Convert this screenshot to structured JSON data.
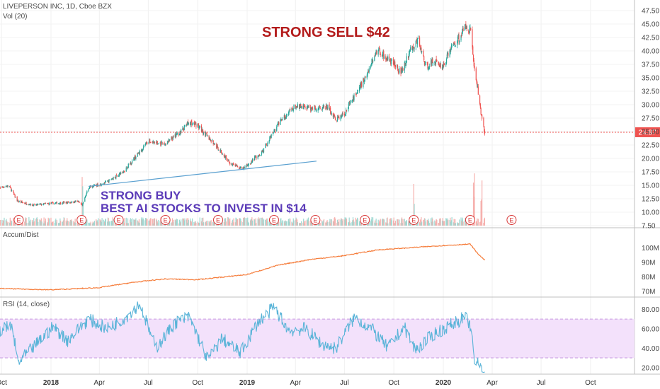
{
  "header": {
    "main_title": "LIVEPERSON INC, 1D, Cboe BZX",
    "volume_label": "Vol (20)",
    "accum_label": "Accum/Dist",
    "rsi_label": "RSI (14, close)"
  },
  "annotations": {
    "sell_text": "STRONG SELL $42",
    "buy_line1": "STRONG BUY",
    "buy_line2": "BEST AI STOCKS TO INVEST IN $14"
  },
  "colors": {
    "up": "#26a69a",
    "down": "#ef5350",
    "accum": "#f57c3a",
    "rsi": "#5ab4d8",
    "rsi_band": "#f3e1fb",
    "trendline": "#5aa0d0",
    "price_line": "#ef5350",
    "earnings": "#d93a3a"
  },
  "chart_data": [
    {
      "type": "candlestick",
      "symbol": "LIVEPERSON INC",
      "interval": "1D",
      "y_ticks": [
        "47.50",
        "45.00",
        "42.50",
        "40.00",
        "37.50",
        "35.00",
        "32.50",
        "30.00",
        "27.50",
        "25.00",
        "22.50",
        "20.00",
        "17.50",
        "15.00",
        "12.50",
        "10.00",
        "7.50"
      ],
      "ylim": [
        7.5,
        47.5
      ],
      "last_price": 24.87,
      "last_price_label": "24.87",
      "x_ticks": [
        {
          "label": "Oct",
          "date": "2017-10-01",
          "year": false
        },
        {
          "label": "2018",
          "date": "2018-01-01",
          "year": true
        },
        {
          "label": "Apr",
          "date": "2018-04-01",
          "year": false
        },
        {
          "label": "Jul",
          "date": "2018-07-01",
          "year": false
        },
        {
          "label": "Oct",
          "date": "2018-10-01",
          "year": false
        },
        {
          "label": "2019",
          "date": "2019-01-01",
          "year": true
        },
        {
          "label": "Apr",
          "date": "2019-04-01",
          "year": false
        },
        {
          "label": "Jul",
          "date": "2019-07-01",
          "year": false
        },
        {
          "label": "Oct",
          "date": "2019-10-01",
          "year": false
        },
        {
          "label": "2020",
          "date": "2020-01-01",
          "year": true
        },
        {
          "label": "Apr",
          "date": "2020-04-01",
          "year": false
        },
        {
          "label": "Jul",
          "date": "2020-07-01",
          "year": false
        },
        {
          "label": "Oct",
          "date": "2020-10-01",
          "year": false
        }
      ],
      "x_range": [
        "2017-09-20",
        "2020-12-15"
      ],
      "close_series": [
        {
          "date": "2017-09-20",
          "close": 14.5
        },
        {
          "date": "2017-10-15",
          "close": 14.9
        },
        {
          "date": "2017-10-31",
          "close": 12.0
        },
        {
          "date": "2017-11-30",
          "close": 11.3
        },
        {
          "date": "2017-12-29",
          "close": 11.6
        },
        {
          "date": "2018-01-31",
          "close": 11.8
        },
        {
          "date": "2018-02-20",
          "close": 12.0
        },
        {
          "date": "2018-02-28",
          "close": 11.3
        },
        {
          "date": "2018-03-12",
          "close": 14.6
        },
        {
          "date": "2018-04-15",
          "close": 15.6
        },
        {
          "date": "2018-05-15",
          "close": 17.5
        },
        {
          "date": "2018-06-15",
          "close": 21.2
        },
        {
          "date": "2018-06-30",
          "close": 23.2
        },
        {
          "date": "2018-07-31",
          "close": 22.6
        },
        {
          "date": "2018-08-31",
          "close": 25.0
        },
        {
          "date": "2018-09-15",
          "close": 26.8
        },
        {
          "date": "2018-09-30",
          "close": 26.2
        },
        {
          "date": "2018-10-31",
          "close": 22.8
        },
        {
          "date": "2018-11-15",
          "close": 21.0
        },
        {
          "date": "2018-11-30",
          "close": 19.2
        },
        {
          "date": "2018-12-24",
          "close": 18.0
        },
        {
          "date": "2019-01-31",
          "close": 21.5
        },
        {
          "date": "2019-02-28",
          "close": 26.5
        },
        {
          "date": "2019-03-31",
          "close": 29.7
        },
        {
          "date": "2019-04-30",
          "close": 29.3
        },
        {
          "date": "2019-05-31",
          "close": 29.6
        },
        {
          "date": "2019-06-15",
          "close": 27.2
        },
        {
          "date": "2019-06-30",
          "close": 28.2
        },
        {
          "date": "2019-07-31",
          "close": 33.5
        },
        {
          "date": "2019-08-15",
          "close": 36.5
        },
        {
          "date": "2019-08-31",
          "close": 40.3
        },
        {
          "date": "2019-09-30",
          "close": 37.5
        },
        {
          "date": "2019-10-15",
          "close": 36.2
        },
        {
          "date": "2019-10-31",
          "close": 40.0
        },
        {
          "date": "2019-11-15",
          "close": 42.0
        },
        {
          "date": "2019-11-30",
          "close": 37.0
        },
        {
          "date": "2019-12-15",
          "close": 38.2
        },
        {
          "date": "2019-12-31",
          "close": 37.0
        },
        {
          "date": "2020-01-15",
          "close": 40.5
        },
        {
          "date": "2020-01-31",
          "close": 42.5
        },
        {
          "date": "2020-02-12",
          "close": 44.6
        },
        {
          "date": "2020-02-21",
          "close": 43.8
        },
        {
          "date": "2020-02-27",
          "close": 37.5
        },
        {
          "date": "2020-03-05",
          "close": 33.0
        },
        {
          "date": "2020-03-12",
          "close": 28.0
        },
        {
          "date": "2020-03-18",
          "close": 24.87
        }
      ],
      "trendline": [
        {
          "date": "2018-03-12",
          "value": 14.8
        },
        {
          "date": "2019-05-10",
          "value": 19.5
        }
      ],
      "earnings_dates": [
        "2017-11-02",
        "2018-02-27",
        "2018-05-07",
        "2018-08-02",
        "2018-11-08",
        "2019-02-20",
        "2019-05-08",
        "2019-08-08",
        "2019-11-07",
        "2020-02-20",
        "2020-05-07"
      ],
      "volume_spike_dates": [
        "2018-03-01",
        "2019-11-08",
        "2020-02-27",
        "2020-03-12"
      ]
    },
    {
      "type": "line",
      "name": "Accum/Dist",
      "y_ticks": [
        "100M",
        "90M",
        "80M",
        "70M"
      ],
      "ylim_millions": [
        67,
        105
      ],
      "series_millions": [
        {
          "date": "2017-09-20",
          "value": 72.0
        },
        {
          "date": "2017-12-31",
          "value": 71.0
        },
        {
          "date": "2018-03-31",
          "value": 72.5
        },
        {
          "date": "2018-05-31",
          "value": 76.0
        },
        {
          "date": "2018-07-31",
          "value": 78.5
        },
        {
          "date": "2018-09-30",
          "value": 78.0
        },
        {
          "date": "2018-12-31",
          "value": 81.5
        },
        {
          "date": "2019-02-28",
          "value": 88.0
        },
        {
          "date": "2019-04-30",
          "value": 92.0
        },
        {
          "date": "2019-06-30",
          "value": 94.5
        },
        {
          "date": "2019-08-31",
          "value": 98.5
        },
        {
          "date": "2019-10-31",
          "value": 100.0
        },
        {
          "date": "2019-12-31",
          "value": 101.5
        },
        {
          "date": "2020-02-20",
          "value": 102.5
        },
        {
          "date": "2020-03-05",
          "value": 96.0
        },
        {
          "date": "2020-03-18",
          "value": 91.5
        }
      ]
    },
    {
      "type": "line",
      "name": "RSI (14, close)",
      "y_ticks": [
        "80.00",
        "60.00",
        "40.00",
        "20.00"
      ],
      "ylim": [
        14,
        89
      ],
      "band": [
        30,
        70
      ],
      "series": [
        {
          "date": "2017-09-20",
          "value": 58
        },
        {
          "date": "2017-10-20",
          "value": 62
        },
        {
          "date": "2017-11-01",
          "value": 25
        },
        {
          "date": "2017-12-01",
          "value": 42
        },
        {
          "date": "2018-01-05",
          "value": 62
        },
        {
          "date": "2018-02-01",
          "value": 48
        },
        {
          "date": "2018-03-12",
          "value": 70
        },
        {
          "date": "2018-04-15",
          "value": 60
        },
        {
          "date": "2018-05-20",
          "value": 72
        },
        {
          "date": "2018-06-15",
          "value": 86
        },
        {
          "date": "2018-07-15",
          "value": 40
        },
        {
          "date": "2018-08-20",
          "value": 66
        },
        {
          "date": "2018-09-15",
          "value": 72
        },
        {
          "date": "2018-10-20",
          "value": 28
        },
        {
          "date": "2018-11-15",
          "value": 50
        },
        {
          "date": "2018-12-20",
          "value": 35
        },
        {
          "date": "2019-01-20",
          "value": 66
        },
        {
          "date": "2019-02-20",
          "value": 82
        },
        {
          "date": "2019-03-20",
          "value": 58
        },
        {
          "date": "2019-04-20",
          "value": 60
        },
        {
          "date": "2019-05-20",
          "value": 44
        },
        {
          "date": "2019-06-15",
          "value": 40
        },
        {
          "date": "2019-07-20",
          "value": 72
        },
        {
          "date": "2019-08-20",
          "value": 60
        },
        {
          "date": "2019-09-20",
          "value": 40
        },
        {
          "date": "2019-10-20",
          "value": 62
        },
        {
          "date": "2019-11-10",
          "value": 38
        },
        {
          "date": "2019-12-15",
          "value": 55
        },
        {
          "date": "2020-01-15",
          "value": 64
        },
        {
          "date": "2020-02-10",
          "value": 72
        },
        {
          "date": "2020-02-21",
          "value": 63
        },
        {
          "date": "2020-02-27",
          "value": 28
        },
        {
          "date": "2020-03-10",
          "value": 21
        },
        {
          "date": "2020-03-18",
          "value": 18
        }
      ]
    }
  ]
}
